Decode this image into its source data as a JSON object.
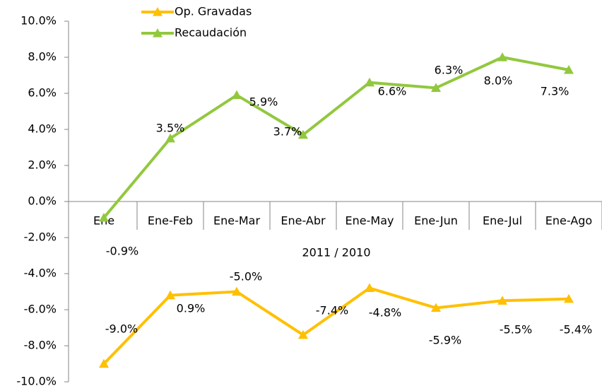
{
  "chart_data": {
    "type": "line",
    "xlabel": "2011 / 2010",
    "categories": [
      "Ene",
      "Ene-Feb",
      "Ene-Mar",
      "Ene-Abr",
      "Ene-May",
      "Ene-Jun",
      "Ene-Jul",
      "Ene-Ago"
    ],
    "series": [
      {
        "name": "Op. Gravadas",
        "color": "#ffc000",
        "values": [
          -9.0,
          -5.2,
          -5.0,
          -7.4,
          -4.8,
          -5.9,
          -5.5,
          -5.4
        ],
        "value_labels": [
          "-9.0%",
          null,
          "-5.0%",
          "-7.4%",
          "-4.8%",
          "-5.9%",
          "-5.5%",
          "-5.4%"
        ]
      },
      {
        "name": "Recaudación",
        "color": "#92c83e",
        "values": [
          -0.9,
          3.5,
          5.9,
          3.7,
          6.6,
          6.3,
          8.0,
          7.3
        ],
        "value_labels": [
          "-0.9%",
          "3.5%",
          "5.9%",
          "3.7%",
          "6.6%",
          "6.3%",
          "8.0%",
          "7.3%"
        ]
      }
    ],
    "annotations": [
      {
        "text": "0.9%"
      }
    ],
    "ylim": [
      -10,
      10
    ],
    "yticks": [
      {
        "value": -10,
        "label": "-10.0%"
      },
      {
        "value": -8,
        "label": "-8.0%"
      },
      {
        "value": -6,
        "label": "-6.0%"
      },
      {
        "value": -4,
        "label": "-4.0%"
      },
      {
        "value": -2,
        "label": "-2.0%"
      },
      {
        "value": 0,
        "label": "0.0%"
      },
      {
        "value": 2,
        "label": "2.0%"
      },
      {
        "value": 4,
        "label": "4.0%"
      },
      {
        "value": 6,
        "label": "6.0%"
      },
      {
        "value": 8,
        "label": "8.0%"
      },
      {
        "value": 10,
        "label": "10.0%"
      }
    ],
    "legend": "top"
  }
}
